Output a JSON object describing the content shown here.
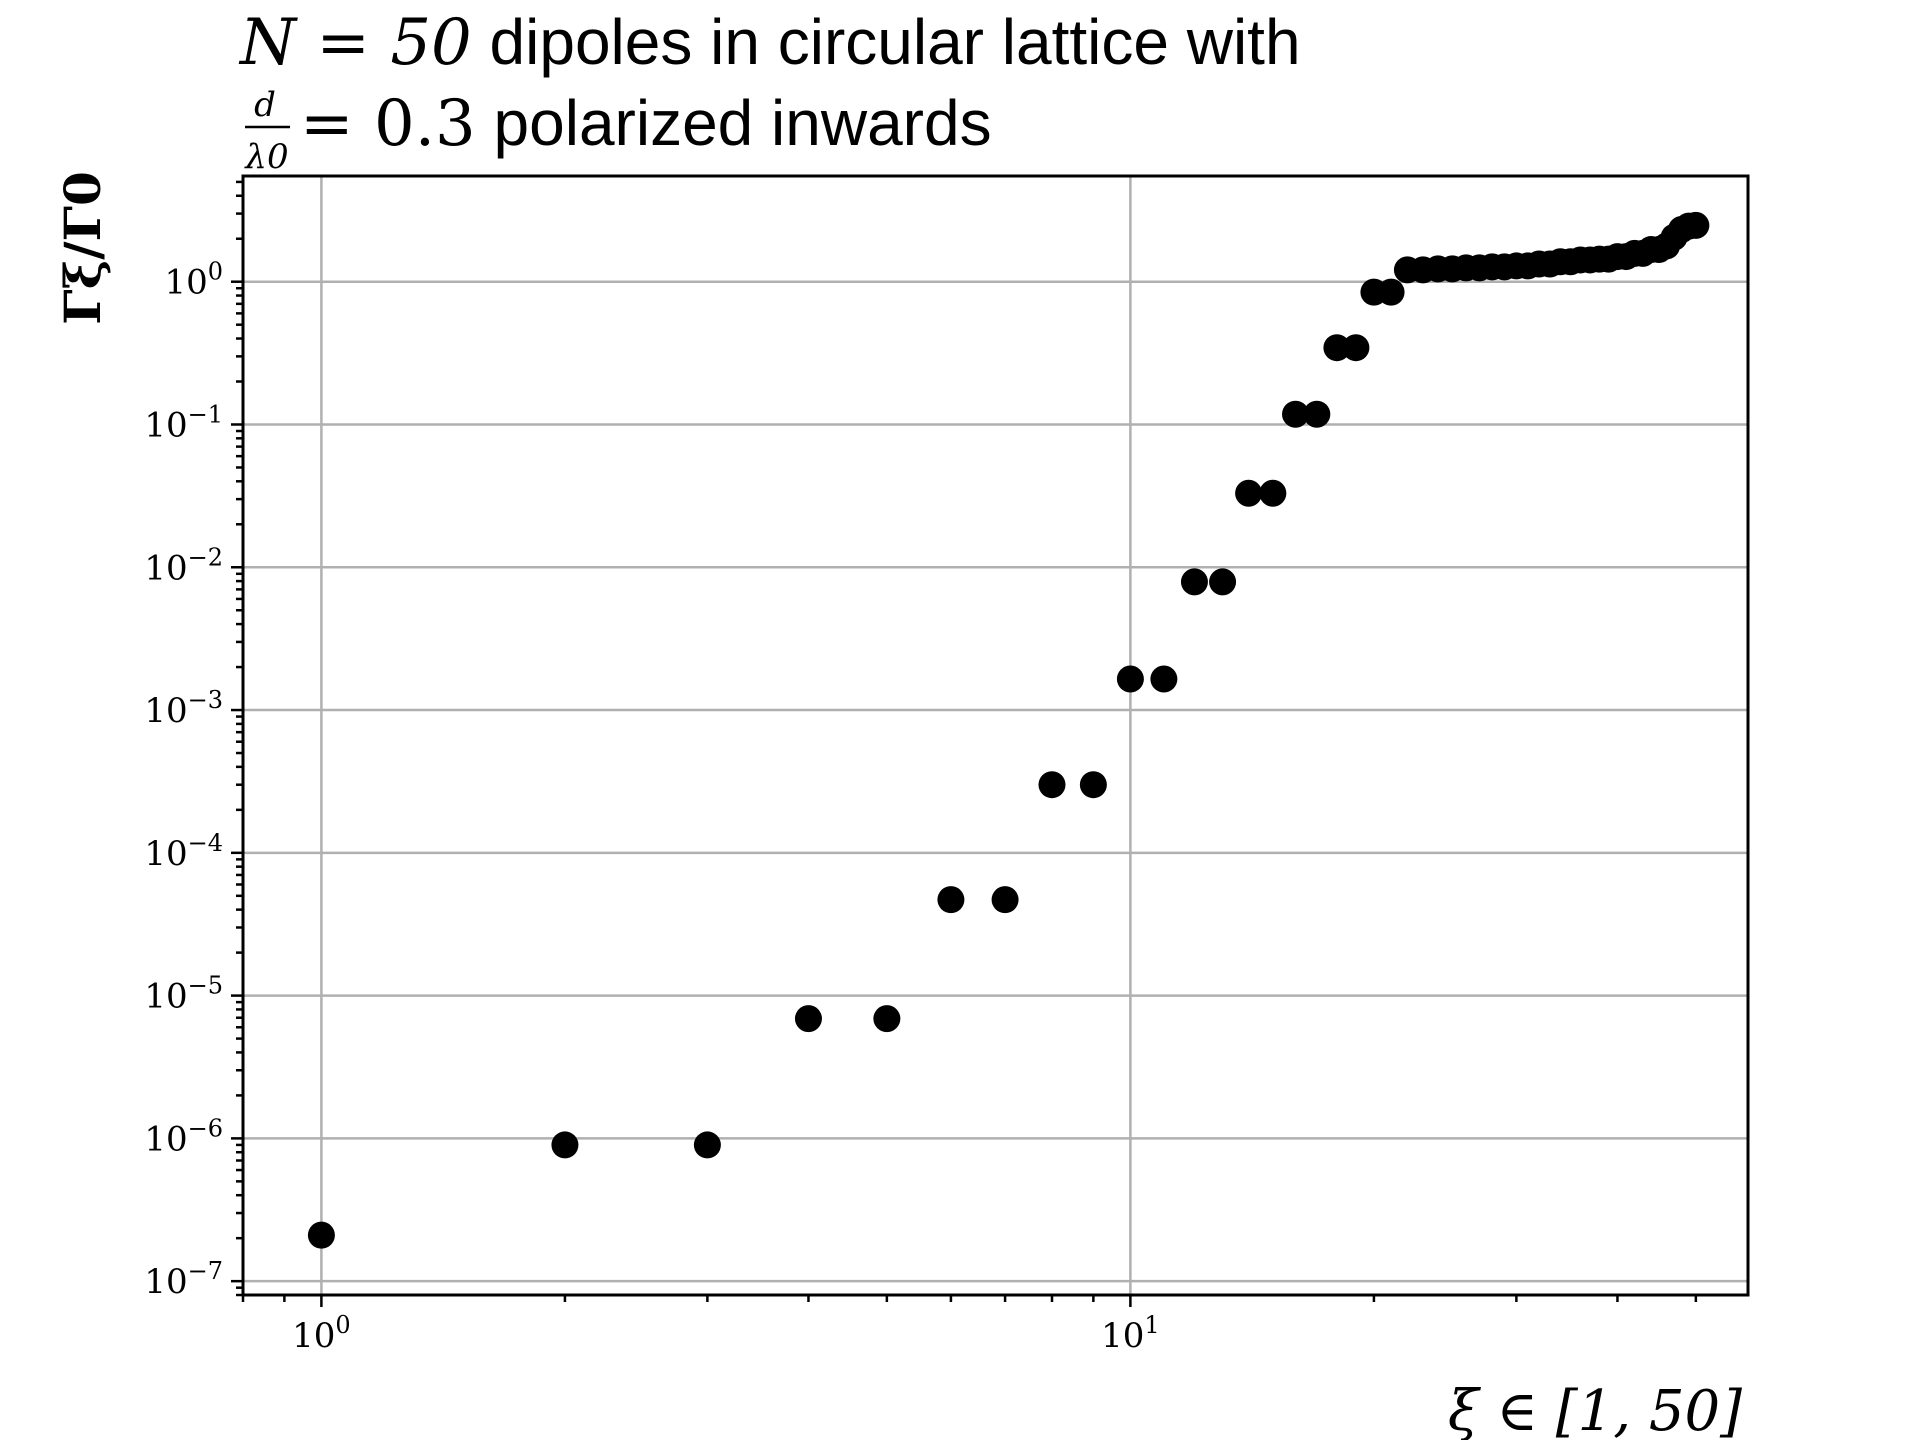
{
  "chart_data": {
    "type": "scatter",
    "title_lines": [
      {
        "math": "N = 50",
        "text": " dipoles in circular lattice with"
      },
      {
        "math_num": "d",
        "math_den": "λ0",
        "math_rest": " = 0.3",
        "text": " polarized inwards"
      }
    ],
    "xlabel": "ξ ∈ [1, 50]",
    "ylabel": "Γξ/Γ0",
    "xscale": "log",
    "yscale": "log",
    "xlim": [
      0.8,
      58
    ],
    "ylim": [
      8e-08,
      5.5
    ],
    "grid": true,
    "x_ticks": [
      {
        "base": "10",
        "exp": "0"
      },
      {
        "base": "10",
        "exp": "1"
      }
    ],
    "y_ticks": [
      {
        "base": "10",
        "exp": "0"
      },
      {
        "base": "10",
        "exp": "−1"
      },
      {
        "base": "10",
        "exp": "−2"
      },
      {
        "base": "10",
        "exp": "−3"
      },
      {
        "base": "10",
        "exp": "−4"
      },
      {
        "base": "10",
        "exp": "−5"
      },
      {
        "base": "10",
        "exp": "−6"
      },
      {
        "base": "10",
        "exp": "−7"
      }
    ],
    "marker_color": "#000000",
    "x": [
      1,
      2,
      3,
      4,
      5,
      6,
      7,
      8,
      9,
      10,
      11,
      12,
      13,
      14,
      15,
      16,
      17,
      18,
      19,
      20,
      21,
      22,
      23,
      24,
      25,
      26,
      27,
      28,
      29,
      30,
      31,
      32,
      33,
      34,
      35,
      36,
      37,
      38,
      39,
      40,
      41,
      42,
      43,
      44,
      45,
      46,
      47,
      48,
      49,
      50
    ],
    "y": [
      2.1e-07,
      9e-07,
      9e-07,
      6.9e-06,
      6.9e-06,
      4.7e-05,
      4.7e-05,
      0.0003,
      0.0003,
      0.00165,
      0.00165,
      0.0079,
      0.0079,
      0.033,
      0.033,
      0.118,
      0.118,
      0.345,
      0.345,
      0.845,
      0.845,
      1.21,
      1.21,
      1.23,
      1.23,
      1.25,
      1.25,
      1.27,
      1.27,
      1.29,
      1.29,
      1.33,
      1.33,
      1.38,
      1.38,
      1.42,
      1.42,
      1.44,
      1.44,
      1.5,
      1.5,
      1.58,
      1.58,
      1.68,
      1.68,
      1.78,
      2.05,
      2.32,
      2.45,
      2.48
    ]
  }
}
